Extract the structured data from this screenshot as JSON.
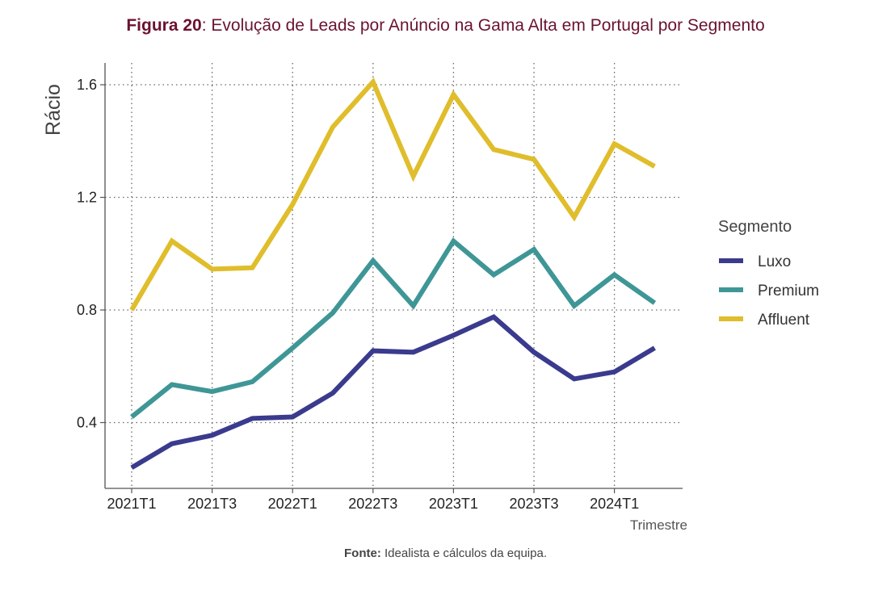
{
  "header": {
    "figure_label": "Figura 20",
    "title_text": ": Evolução de Leads por Anúncio na Gama Alta em Portugal por Segmento"
  },
  "source": {
    "label": "Fonte:",
    "text": " Idealista e cálculos da equipa."
  },
  "chart_data": {
    "type": "line",
    "title": "Evolução de Leads por Anúncio na Gama Alta em Portugal por Segmento",
    "xlabel": "Trimestre",
    "ylabel": "Rácio",
    "x": [
      "2021T1",
      "2021T2",
      "2021T3",
      "2021T4",
      "2022T1",
      "2022T2",
      "2022T3",
      "2022T4",
      "2023T1",
      "2023T2",
      "2023T3",
      "2023T4",
      "2024T1",
      "2024T2"
    ],
    "x_tick_labels": [
      "2021T1",
      "2021T3",
      "2022T1",
      "2022T3",
      "2023T1",
      "2023T3",
      "2024T1"
    ],
    "y_ticks": [
      0.4,
      0.8,
      1.2,
      1.6
    ],
    "y_tick_labels": [
      "0.4",
      "0.8",
      "1.2",
      "1.6"
    ],
    "ylim": [
      0.18,
      1.69
    ],
    "grid": true,
    "legend_title": "Segmento",
    "legend_position": "right",
    "series": [
      {
        "name": "Luxo",
        "color": "#3a3a8e",
        "values": [
          0.24,
          0.325,
          0.355,
          0.415,
          0.42,
          0.505,
          0.655,
          0.65,
          0.71,
          0.775,
          0.65,
          0.555,
          0.58,
          0.665
        ]
      },
      {
        "name": "Premium",
        "color": "#3f9696",
        "values": [
          0.42,
          0.535,
          0.51,
          0.545,
          0.665,
          0.79,
          0.975,
          0.815,
          1.045,
          0.925,
          1.015,
          0.815,
          0.925,
          0.825
        ]
      },
      {
        "name": "Affluent",
        "color": "#e0bd2b",
        "values": [
          0.8,
          1.045,
          0.945,
          0.95,
          1.175,
          1.45,
          1.61,
          1.275,
          1.565,
          1.37,
          1.335,
          1.13,
          1.39,
          1.31
        ]
      }
    ]
  }
}
